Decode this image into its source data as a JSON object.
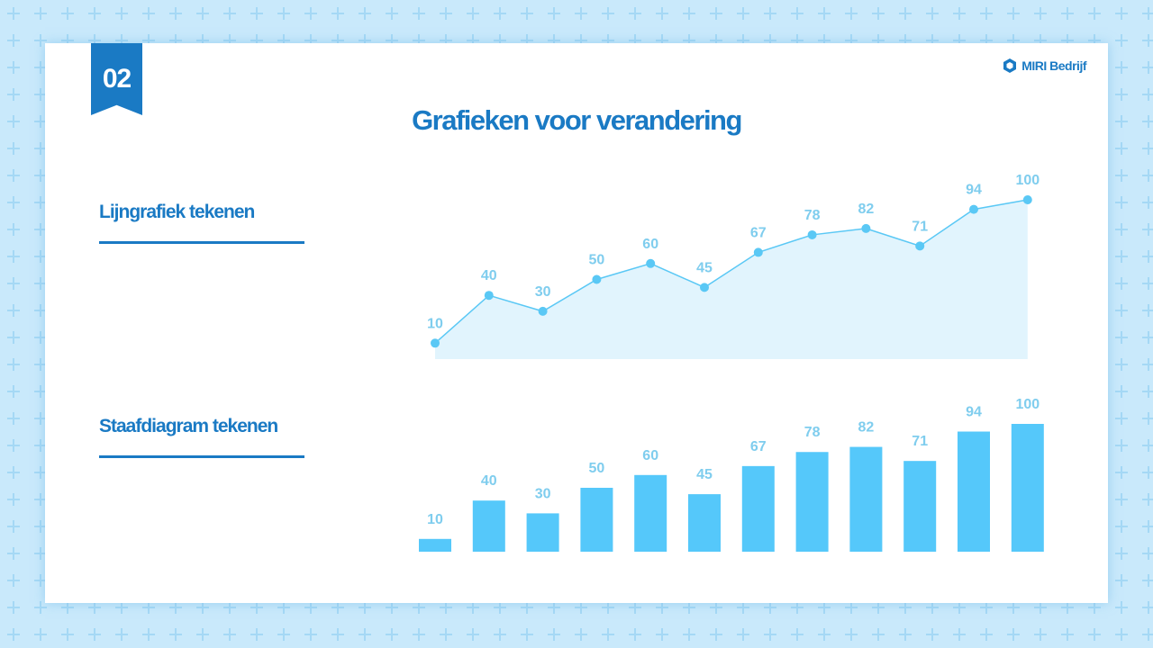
{
  "badge": "02",
  "brand": "MIRI Bedrijf",
  "title": "Grafieken voor verandering",
  "sections": [
    {
      "heading": "Lijngrafiek tekenen"
    },
    {
      "heading": "Staafdiagram tekenen"
    }
  ],
  "chart_data": [
    {
      "type": "line",
      "values": [
        10,
        40,
        30,
        50,
        60,
        45,
        67,
        78,
        82,
        71,
        94,
        100
      ],
      "color": "#5ac8f5",
      "area_color": "#e1f4fd",
      "label_color": "#7fcdee"
    },
    {
      "type": "bar",
      "values": [
        10,
        40,
        30,
        50,
        60,
        45,
        67,
        78,
        82,
        71,
        94,
        100
      ],
      "color": "#55c8fa",
      "label_color": "#7fcdee"
    }
  ]
}
